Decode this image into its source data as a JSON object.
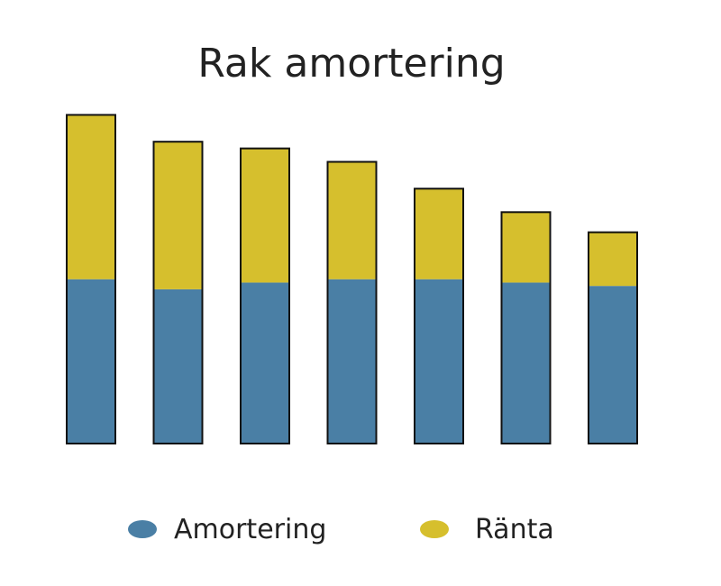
{
  "chart_data": {
    "type": "bar",
    "stacked": true,
    "title": "Rak amortering",
    "xlabel": "",
    "ylabel": "",
    "ylim": [
      0,
      1
    ],
    "categories": [
      "",
      "",
      "",
      "",
      "",
      "",
      ""
    ],
    "series": [
      {
        "name": "Amortering",
        "color": "#4a7fa5",
        "values": [
          0.49,
          0.46,
          0.48,
          0.49,
          0.49,
          0.48,
          0.47
        ]
      },
      {
        "name": "Ränta",
        "color": "#d6bf2d",
        "values": [
          0.49,
          0.44,
          0.4,
          0.35,
          0.27,
          0.21,
          0.16
        ]
      }
    ],
    "grid": false,
    "legend_position": "bottom"
  },
  "colors": {
    "amortering": "#4a7fa5",
    "ranta": "#d6bf2d",
    "outline": "#111111"
  }
}
